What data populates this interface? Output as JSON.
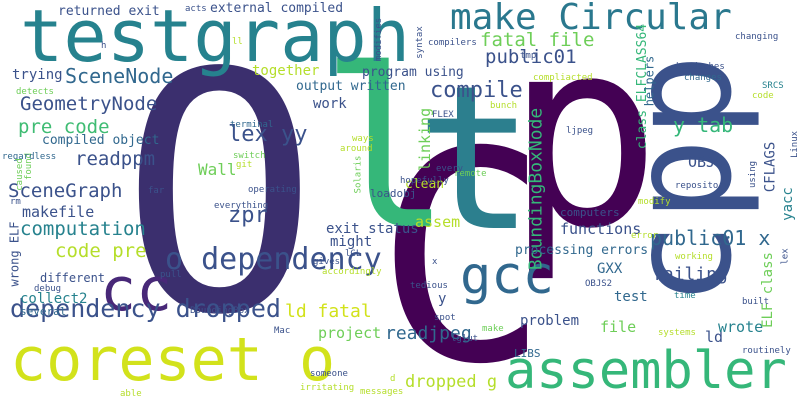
{
  "palette": {
    "dark_purple": "#440154",
    "indigo": "#3b528b",
    "blue": "#31688e",
    "teal": "#26828e",
    "teal_green": "#1f9e89",
    "green": "#35b779",
    "light_green": "#6ece58",
    "lime": "#b5de2b",
    "yellow": "#fde725"
  },
  "words": [
    {
      "text": "O",
      "color": "#3b2f6e"
    },
    {
      "text": "C",
      "color": "#440154"
    },
    {
      "text": "p",
      "color": "#440154"
    },
    {
      "text": "l",
      "color": "#35b779"
    },
    {
      "text": "t",
      "color": "#2c7f8e"
    },
    {
      "text": "cpp",
      "color": "#3b528b"
    },
    {
      "text": "testgraph",
      "color": "#26828e"
    },
    {
      "text": "make Circular",
      "color": "#2a788e"
    },
    {
      "text": "coreset o",
      "color": "#d2e21b"
    },
    {
      "text": "assembler",
      "color": "#35b779"
    },
    {
      "text": "cc",
      "color": "#482878"
    },
    {
      "text": "gcc",
      "color": "#31688e"
    },
    {
      "text": "o dependency",
      "color": "#3b528b"
    },
    {
      "text": "dependency dropped",
      "color": "#3b528b"
    },
    {
      "text": "fatal file",
      "color": "#6ece58"
    },
    {
      "text": "public01",
      "color": "#3b528b"
    },
    {
      "text": "SceneNode",
      "color": "#31688e"
    },
    {
      "text": "GeometryNode",
      "color": "#3b528b"
    },
    {
      "text": "pre code",
      "color": "#3fbc73"
    },
    {
      "text": "compiled object",
      "color": "#31688e"
    },
    {
      "text": "readppm",
      "color": "#3b528b"
    },
    {
      "text": "SceneGraph",
      "color": "#3b528b"
    },
    {
      "text": "makefile",
      "color": "#3b528b"
    },
    {
      "text": "computation",
      "color": "#26828e"
    },
    {
      "text": "code pre",
      "color": "#b5de2b"
    },
    {
      "text": "compile",
      "color": "#3b528b"
    },
    {
      "text": "lex yy",
      "color": "#3b528b"
    },
    {
      "text": "Wall",
      "color": "#6ece58"
    },
    {
      "text": "zpr",
      "color": "#3b528b"
    },
    {
      "text": "output written",
      "color": "#31688e"
    },
    {
      "text": "program using",
      "color": "#3b528b"
    },
    {
      "text": "together",
      "color": "#b5de2b"
    },
    {
      "text": "work",
      "color": "#3b528b"
    },
    {
      "text": "y tab",
      "color": "#35b779"
    },
    {
      "text": "public01 x",
      "color": "#31688e"
    },
    {
      "text": "BoundingBoxNode",
      "color": "#35b779"
    },
    {
      "text": "linking",
      "color": "#6ece58"
    },
    {
      "text": "ld fatal",
      "color": "#d2e21b"
    },
    {
      "text": "readjpeg",
      "color": "#31688e"
    },
    {
      "text": "exit status",
      "color": "#3b528b"
    },
    {
      "text": "might",
      "color": "#3b528b"
    },
    {
      "text": "assem",
      "color": "#b5de2b"
    },
    {
      "text": "processing errors",
      "color": "#31688e"
    },
    {
      "text": "functions",
      "color": "#3b528b"
    },
    {
      "text": "GXX",
      "color": "#31688e"
    },
    {
      "text": "failing",
      "color": "#3b528b"
    },
    {
      "text": "ld",
      "color": "#3b528b"
    },
    {
      "text": "test",
      "color": "#31688e"
    },
    {
      "text": "problem",
      "color": "#3b528b"
    },
    {
      "text": "file",
      "color": "#6ece58"
    },
    {
      "text": "wrote",
      "color": "#26828e"
    },
    {
      "text": "dropped g",
      "color": "#b5de2b"
    },
    {
      "text": "project",
      "color": "#6ece58"
    },
    {
      "text": "collect2",
      "color": "#26828e"
    },
    {
      "text": "different",
      "color": "#3b528b"
    },
    {
      "text": "several",
      "color": "#31688e"
    },
    {
      "text": "trying",
      "color": "#3b528b"
    },
    {
      "text": "returned exit",
      "color": "#3b528b"
    },
    {
      "text": "external compiled",
      "color": "#3b528b"
    },
    {
      "text": "loadobj",
      "color": "#3b528b"
    },
    {
      "text": "clean",
      "color": "#b5de2b"
    },
    {
      "text": "computers",
      "color": "#3b528b"
    },
    {
      "text": "OBJS",
      "color": "#3b528b"
    },
    {
      "text": "CFLAGS",
      "color": "#3b528b"
    },
    {
      "text": "yacc",
      "color": "#26828e"
    },
    {
      "text": "ELF class",
      "color": "#6ece58"
    },
    {
      "text": "class ELFCLASS64",
      "color": "#35b779"
    },
    {
      "text": "helpers",
      "color": "#31688e"
    },
    {
      "text": "wrong ELF",
      "color": "#3b528b"
    },
    {
      "text": "headaches",
      "color": "#3b528b"
    },
    {
      "text": "changes",
      "color": "#31688e"
    },
    {
      "text": "repository",
      "color": "#3b528b"
    },
    {
      "text": "ljpeg",
      "color": "#3b528b"
    },
    {
      "text": "tmp",
      "color": "#3b528b"
    },
    {
      "text": "compilers",
      "color": "#3b528b"
    },
    {
      "text": "compliacted",
      "color": "#b5de2b"
    },
    {
      "text": "acts",
      "color": "#3b528b"
    },
    {
      "text": "changing",
      "color": "#3b528b"
    },
    {
      "text": "SRCS",
      "color": "#26828e"
    },
    {
      "text": "code",
      "color": "#b5de2b"
    },
    {
      "text": "Linux",
      "color": "#3b528b"
    },
    {
      "text": "using",
      "color": "#3b528b"
    },
    {
      "text": "lex",
      "color": "#3b528b"
    },
    {
      "text": "built",
      "color": "#3b528b"
    },
    {
      "text": "routinely",
      "color": "#3b528b"
    },
    {
      "text": "modify",
      "color": "#b5de2b"
    },
    {
      "text": "error",
      "color": "#b5de2b"
    },
    {
      "text": "working",
      "color": "#b5de2b"
    },
    {
      "text": "time",
      "color": "#26828e"
    },
    {
      "text": "systems",
      "color": "#b5de2b"
    },
    {
      "text": "OBJS2",
      "color": "#3b528b"
    },
    {
      "text": "bunch",
      "color": "#b5de2b"
    },
    {
      "text": "FLEX",
      "color": "#3b528b"
    },
    {
      "text": "remote",
      "color": "#6ece58"
    },
    {
      "text": "every",
      "color": "#3b528b"
    },
    {
      "text": "hopefully",
      "color": "#3b528b"
    },
    {
      "text": "operating",
      "color": "#3b528b"
    },
    {
      "text": "everything",
      "color": "#3b528b"
    },
    {
      "text": "terminal",
      "color": "#31688e"
    },
    {
      "text": "ways",
      "color": "#b5de2b"
    },
    {
      "text": "around",
      "color": "#b5de2b"
    },
    {
      "text": "switch",
      "color": "#6ece58"
    },
    {
      "text": "git",
      "color": "#b5de2b"
    },
    {
      "text": "Solaris",
      "color": "#6ece58"
    },
    {
      "text": "found",
      "color": "#6ece58"
    },
    {
      "text": "detects",
      "color": "#6ece58"
    },
    {
      "text": "regardless",
      "color": "#31688e"
    },
    {
      "text": "caused",
      "color": "#6ece58"
    },
    {
      "text": "far",
      "color": "#3b528b"
    },
    {
      "text": "rm",
      "color": "#3b528b"
    },
    {
      "text": "debug",
      "color": "#3b528b"
    },
    {
      "text": "pull",
      "color": "#3b528b"
    },
    {
      "text": "BoundingBox",
      "color": "#3b528b"
    },
    {
      "text": "gives",
      "color": "#3b528b"
    },
    {
      "text": "accordingly",
      "color": "#b5de2b"
    },
    {
      "text": "lGL",
      "color": "#3b528b"
    },
    {
      "text": "tedious",
      "color": "#3b528b"
    },
    {
      "text": "spot",
      "color": "#3b528b"
    },
    {
      "text": "lglut",
      "color": "#3b528b"
    },
    {
      "text": "LIBS",
      "color": "#31688e"
    },
    {
      "text": "Mac",
      "color": "#3b528b"
    },
    {
      "text": "someone",
      "color": "#3b528b"
    },
    {
      "text": "irritating",
      "color": "#b5de2b"
    },
    {
      "text": "messages",
      "color": "#b5de2b"
    },
    {
      "text": "able",
      "color": "#b5de2b"
    },
    {
      "text": "make",
      "color": "#6ece58"
    },
    {
      "text": "syntax",
      "color": "#3b528b"
    },
    {
      "text": "modifies",
      "color": "#3b528b"
    },
    {
      "text": "ll",
      "color": "#b5de2b"
    },
    {
      "text": "h",
      "color": "#3b528b"
    },
    {
      "text": "x",
      "color": "#3b528b"
    },
    {
      "text": "y",
      "color": "#3b528b"
    },
    {
      "text": "d",
      "color": "#b5de2b"
    }
  ]
}
